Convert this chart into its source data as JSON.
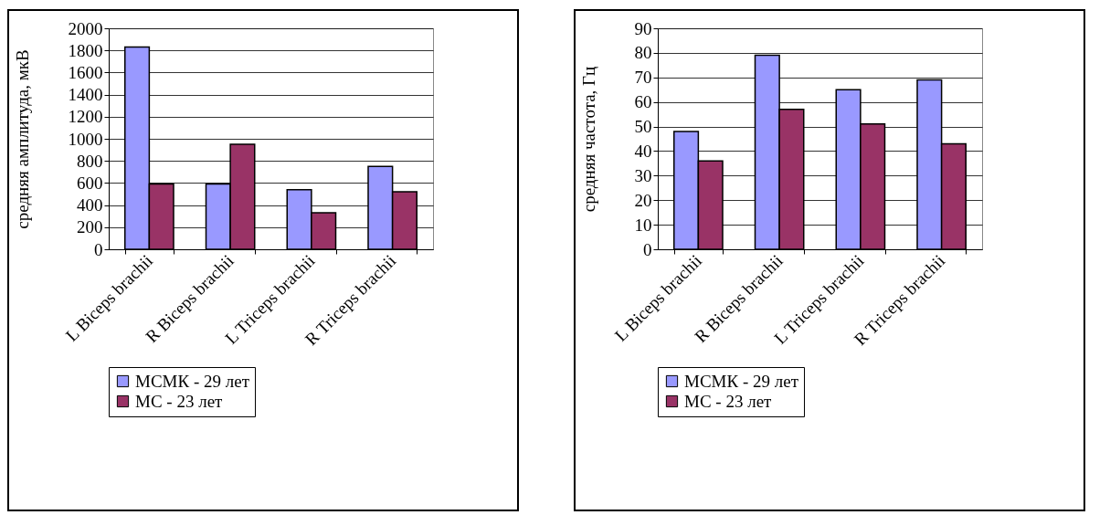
{
  "chart_data": [
    {
      "type": "bar",
      "ylabel": "средняя амплитуда, мкВ",
      "categories": [
        "L Biceps brachii",
        "R Biceps brachii",
        "L Triceps brachii",
        "R Triceps brachii"
      ],
      "series": [
        {
          "name": "МСМК - 29 лет",
          "color": "#9999ff",
          "values": [
            1830,
            590,
            540,
            750
          ]
        },
        {
          "name": "МС - 23 лет",
          "color": "#993366",
          "values": [
            590,
            950,
            330,
            520
          ]
        }
      ],
      "ylim": [
        0,
        2000
      ],
      "yticks": [
        0,
        200,
        400,
        600,
        800,
        1000,
        1200,
        1400,
        1600,
        1800,
        2000
      ],
      "grid": "y",
      "legend": "bottom"
    },
    {
      "type": "bar",
      "ylabel": "средняя частота, Гц",
      "categories": [
        "L Biceps brachii",
        "R Biceps brachii",
        "L Triceps brachii",
        "R Triceps brachii"
      ],
      "series": [
        {
          "name": "МСМК - 29 лет",
          "color": "#9999ff",
          "values": [
            48,
            79,
            65,
            69
          ]
        },
        {
          "name": "МС - 23 лет",
          "color": "#993366",
          "values": [
            36,
            57,
            51,
            43
          ]
        }
      ],
      "ylim": [
        0,
        90
      ],
      "yticks": [
        0,
        10,
        20,
        30,
        40,
        50,
        60,
        70,
        80,
        90
      ],
      "grid": "y",
      "legend": "bottom"
    }
  ]
}
